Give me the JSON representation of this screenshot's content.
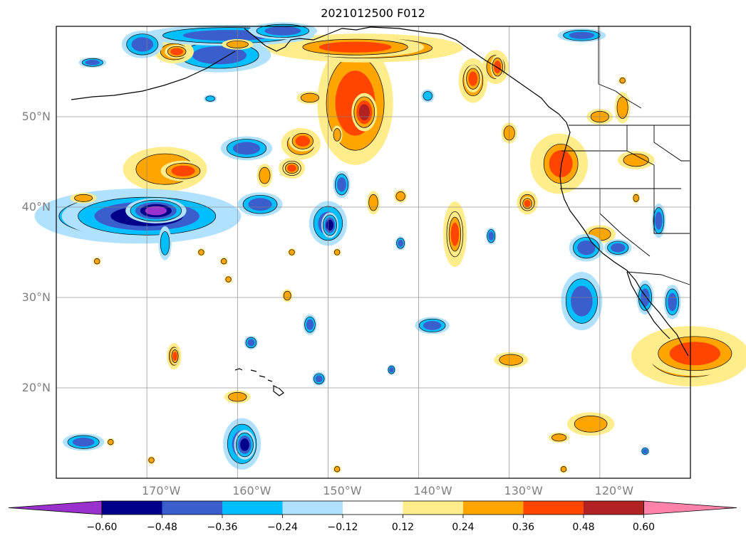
{
  "title": "2021012500 F012",
  "lat_labels": [
    {
      "text": "50°N",
      "lat": 50
    },
    {
      "text": "40°N",
      "lat": 40
    },
    {
      "text": "30°N",
      "lat": 30
    },
    {
      "text": "20°N",
      "lat": 20
    }
  ],
  "lon_labels": [
    {
      "text": "170°W",
      "lon": -170
    },
    {
      "text": "160°W",
      "lon": -160
    },
    {
      "text": "150°W",
      "lon": -150
    },
    {
      "text": "140°W",
      "lon": -140
    },
    {
      "text": "130°W",
      "lon": -130
    },
    {
      "text": "120°W",
      "lon": -120
    }
  ],
  "map_extent": {
    "lon_min": -180,
    "lon_max": -110,
    "lat_min": 10,
    "lat_max": 60
  },
  "colorbar": {
    "levels": [
      "−0.60",
      "−0.48",
      "−0.36",
      "−0.24",
      "−0.12",
      "0.12",
      "0.24",
      "0.36",
      "0.48",
      "0.60"
    ],
    "colors": [
      "#9932CC",
      "#00008B",
      "#3A5FCD",
      "#00BFFF",
      "#B0E2FF",
      "#FFFFFF",
      "#FFEC8B",
      "#FFA500",
      "#FF4500",
      "#B22222",
      "#FF82AB"
    ]
  },
  "anomaly_blobs": [
    {
      "lon": -147,
      "lat": 51.5,
      "rx": 2.2,
      "ry": 3.6,
      "level": 3
    },
    {
      "lon": -146,
      "lat": 50.5,
      "rx": 0.6,
      "ry": 0.9,
      "level": 4
    },
    {
      "lon": -168,
      "lat": 44.2,
      "rx": 3.2,
      "ry": 1.7,
      "level": 2
    },
    {
      "lon": -166,
      "lat": 44.0,
      "rx": 1.3,
      "ry": 0.6,
      "level": 3
    },
    {
      "lon": -171,
      "lat": 39.0,
      "rx": 6.0,
      "ry": 1.6,
      "level": -3
    },
    {
      "lon": -170,
      "lat": 39.0,
      "rx": 4.0,
      "ry": 1.1,
      "level": -4
    },
    {
      "lon": -169,
      "lat": 39.6,
      "rx": 1.2,
      "ry": 0.5,
      "level": -5
    },
    {
      "lon": -110,
      "lat": 23.5,
      "rx": 4.5,
      "ry": 2.3,
      "level": 2
    },
    {
      "lon": -109.5,
      "lat": 23.8,
      "rx": 2.8,
      "ry": 1.3,
      "level": 3
    },
    {
      "lon": -124.5,
      "lat": 44.8,
      "rx": 2.2,
      "ry": 2.3,
      "level": 2
    },
    {
      "lon": -124.3,
      "lat": 44.8,
      "rx": 1.3,
      "ry": 1.5,
      "level": 3
    },
    {
      "lon": -150,
      "lat": 38.2,
      "rx": 1.1,
      "ry": 1.3,
      "level": -3
    },
    {
      "lon": -149.8,
      "lat": 38.0,
      "rx": 0.4,
      "ry": 0.6,
      "level": -4
    },
    {
      "lon": -136,
      "lat": 37.0,
      "rx": 0.9,
      "ry": 2.5,
      "level": 2
    },
    {
      "lon": -136,
      "lat": 37.0,
      "rx": 0.45,
      "ry": 1.3,
      "level": 3
    },
    {
      "lon": -134,
      "lat": 54.0,
      "rx": 1.1,
      "ry": 1.7,
      "level": 2
    },
    {
      "lon": -134,
      "lat": 54.2,
      "rx": 0.5,
      "ry": 0.8,
      "level": 3
    },
    {
      "lon": -146,
      "lat": 57.6,
      "rx": 7.5,
      "ry": 1.1,
      "level": 2
    },
    {
      "lon": -147,
      "lat": 57.7,
      "rx": 4.0,
      "ry": 0.6,
      "level": 3
    },
    {
      "lon": -162,
      "lat": 56.8,
      "rx": 3.0,
      "ry": 1.0,
      "level": -3
    },
    {
      "lon": -167,
      "lat": 57.2,
      "rx": 1.5,
      "ry": 0.9,
      "level": 2
    },
    {
      "lon": -166.7,
      "lat": 57.2,
      "rx": 0.7,
      "ry": 0.4,
      "level": 3
    },
    {
      "lon": -161,
      "lat": 59.0,
      "rx": 5.0,
      "ry": 0.6,
      "level": -3
    },
    {
      "lon": -121,
      "lat": 16.0,
      "rx": 1.8,
      "ry": 0.9,
      "level": 2
    },
    {
      "lon": -159.5,
      "lat": 13.8,
      "rx": 1.1,
      "ry": 1.5,
      "level": -3
    },
    {
      "lon": -159.2,
      "lat": 13.7,
      "rx": 0.5,
      "ry": 0.7,
      "level": -4
    },
    {
      "lon": -122,
      "lat": 29.6,
      "rx": 1.2,
      "ry": 1.7,
      "level": -3
    },
    {
      "lon": -128,
      "lat": 40.5,
      "rx": 0.8,
      "ry": 0.9,
      "level": 2
    },
    {
      "lon": -128,
      "lat": 40.4,
      "rx": 0.35,
      "ry": 0.4,
      "level": 3
    },
    {
      "lon": -153,
      "lat": 47.0,
      "rx": 1.5,
      "ry": 1.2,
      "level": 2
    },
    {
      "lon": -152.8,
      "lat": 47.3,
      "rx": 0.8,
      "ry": 0.6,
      "level": 3
    },
    {
      "lon": -154,
      "lat": 44.3,
      "rx": 1.0,
      "ry": 0.8,
      "level": 2
    },
    {
      "lon": -154,
      "lat": 44.3,
      "rx": 0.5,
      "ry": 0.4,
      "level": 3
    },
    {
      "lon": -157.5,
      "lat": 40.3,
      "rx": 1.3,
      "ry": 0.7,
      "level": -3
    },
    {
      "lon": -120,
      "lat": 37.0,
      "rx": 1.2,
      "ry": 0.7,
      "level": 2
    },
    {
      "lon": -121.5,
      "lat": 35.5,
      "rx": 1.0,
      "ry": 0.8,
      "level": -3
    },
    {
      "lon": -131.5,
      "lat": 55.5,
      "rx": 1.0,
      "ry": 1.3,
      "level": 2
    },
    {
      "lon": -131.3,
      "lat": 55.5,
      "rx": 0.4,
      "ry": 0.7,
      "level": 3
    },
    {
      "lon": -116,
      "lat": 45.2,
      "rx": 1.4,
      "ry": 0.7,
      "level": 2
    },
    {
      "lon": -117.5,
      "lat": 51.0,
      "rx": 0.6,
      "ry": 1.2,
      "level": 2
    },
    {
      "lon": -120,
      "lat": 50.0,
      "rx": 1.0,
      "ry": 0.6,
      "level": 2
    },
    {
      "lon": -130,
      "lat": 48.2,
      "rx": 0.6,
      "ry": 0.8,
      "level": 2
    },
    {
      "lon": -129.8,
      "lat": 23.1,
      "rx": 1.3,
      "ry": 0.6,
      "level": 2
    },
    {
      "lon": -138.5,
      "lat": 26.9,
      "rx": 1.0,
      "ry": 0.5,
      "level": -3
    },
    {
      "lon": -167,
      "lat": 23.5,
      "rx": 0.55,
      "ry": 1.0,
      "level": 2
    },
    {
      "lon": -166.9,
      "lat": 23.5,
      "rx": 0.25,
      "ry": 0.5,
      "level": 3
    },
    {
      "lon": -160,
      "lat": 19.0,
      "rx": 1.0,
      "ry": 0.5,
      "level": 2
    },
    {
      "lon": -124.5,
      "lat": 14.5,
      "rx": 0.8,
      "ry": 0.4,
      "level": 2
    },
    {
      "lon": -177,
      "lat": 14.0,
      "rx": 1.2,
      "ry": 0.5,
      "level": -3
    },
    {
      "lon": -115,
      "lat": 30.0,
      "rx": 0.5,
      "ry": 1.0,
      "level": -3
    },
    {
      "lon": -112,
      "lat": 29.5,
      "rx": 0.5,
      "ry": 1.0,
      "level": -3
    },
    {
      "lon": -122,
      "lat": 59.0,
      "rx": 1.4,
      "ry": 0.4,
      "level": -3
    },
    {
      "lon": -155,
      "lat": 59.5,
      "rx": 2.0,
      "ry": 0.5,
      "level": -3
    },
    {
      "lon": -170.5,
      "lat": 58.0,
      "rx": 1.2,
      "ry": 0.8,
      "level": -3
    },
    {
      "lon": -159,
      "lat": 46.5,
      "rx": 1.5,
      "ry": 0.7,
      "level": -3
    },
    {
      "lon": -177,
      "lat": 41.0,
      "rx": 1.0,
      "ry": 0.4,
      "level": 2
    },
    {
      "lon": -157,
      "lat": 43.5,
      "rx": 0.6,
      "ry": 0.9,
      "level": 2
    },
    {
      "lon": -152,
      "lat": 52.1,
      "rx": 1.0,
      "ry": 0.5,
      "level": 2
    },
    {
      "lon": -139,
      "lat": 52.3,
      "rx": 0.5,
      "ry": 0.5,
      "level": -2
    },
    {
      "lon": -118,
      "lat": 35.5,
      "rx": 0.8,
      "ry": 0.5,
      "level": -3
    },
    {
      "lon": -113.5,
      "lat": 38.5,
      "rx": 0.4,
      "ry": 1.0,
      "level": -3
    },
    {
      "lon": -149,
      "lat": 48.0,
      "rx": 0.4,
      "ry": 0.7,
      "level": 2
    },
    {
      "lon": -148.5,
      "lat": 42.5,
      "rx": 0.5,
      "ry": 0.8,
      "level": -3
    },
    {
      "lon": -142,
      "lat": 41.2,
      "rx": 0.5,
      "ry": 0.5,
      "level": 2
    },
    {
      "lon": -145,
      "lat": 40.5,
      "rx": 0.5,
      "ry": 0.9,
      "level": 2
    },
    {
      "lon": -151,
      "lat": 21.0,
      "rx": 0.4,
      "ry": 0.4,
      "level": -3
    },
    {
      "lon": -152,
      "lat": 27.0,
      "rx": 0.4,
      "ry": 0.6,
      "level": -3
    },
    {
      "lon": -154.5,
      "lat": 30.2,
      "rx": 0.4,
      "ry": 0.5,
      "level": 2
    },
    {
      "lon": -158.5,
      "lat": 25.0,
      "rx": 0.4,
      "ry": 0.4,
      "level": -3
    },
    {
      "lon": -168,
      "lat": 36.0,
      "rx": 0.5,
      "ry": 1.3,
      "level": -2
    },
    {
      "lon": -132,
      "lat": 36.8,
      "rx": 0.3,
      "ry": 0.5,
      "level": -3
    },
    {
      "lon": -142,
      "lat": 36.0,
      "rx": 0.3,
      "ry": 0.4,
      "level": -3
    },
    {
      "lon": -164,
      "lat": 35.0,
      "rx": 0.3,
      "ry": 0.3,
      "level": 2
    },
    {
      "lon": -161.5,
      "lat": 34.0,
      "rx": 0.3,
      "ry": 0.3,
      "level": 2
    },
    {
      "lon": -161.0,
      "lat": 32.0,
      "rx": 0.3,
      "ry": 0.3,
      "level": 2
    },
    {
      "lon": -154.0,
      "lat": 35.0,
      "rx": 0.3,
      "ry": 0.3,
      "level": 2
    },
    {
      "lon": -149.0,
      "lat": 35.0,
      "rx": 0.3,
      "ry": 0.3,
      "level": 2
    },
    {
      "lon": -175.5,
      "lat": 34.0,
      "rx": 0.3,
      "ry": 0.3,
      "level": 2
    },
    {
      "lon": -174.0,
      "lat": 14.0,
      "rx": 0.3,
      "ry": 0.3,
      "level": 2
    },
    {
      "lon": -169.5,
      "lat": 12.0,
      "rx": 0.3,
      "ry": 0.3,
      "level": 2
    },
    {
      "lon": -149,
      "lat": 11.0,
      "rx": 0.3,
      "ry": 0.3,
      "level": 2
    },
    {
      "lon": -124,
      "lat": 11.0,
      "rx": 0.3,
      "ry": 0.3,
      "level": 2
    },
    {
      "lon": -143,
      "lat": 22.0,
      "rx": 0.25,
      "ry": 0.3,
      "level": -3
    },
    {
      "lon": -115,
      "lat": 13.0,
      "rx": 0.25,
      "ry": 0.25,
      "level": -3
    },
    {
      "lon": -116,
      "lat": 41.0,
      "rx": 0.3,
      "ry": 0.4,
      "level": 2
    },
    {
      "lon": -117.5,
      "lat": 54.0,
      "rx": 0.3,
      "ry": 0.3,
      "level": 2
    },
    {
      "lon": -176,
      "lat": 56.0,
      "rx": 0.8,
      "ry": 0.3,
      "level": -3
    },
    {
      "lon": -163,
      "lat": 52.0,
      "rx": 0.5,
      "ry": 0.3,
      "level": -2
    },
    {
      "lon": -160,
      "lat": 58.0,
      "rx": 1.2,
      "ry": 0.4,
      "level": 2
    }
  ]
}
